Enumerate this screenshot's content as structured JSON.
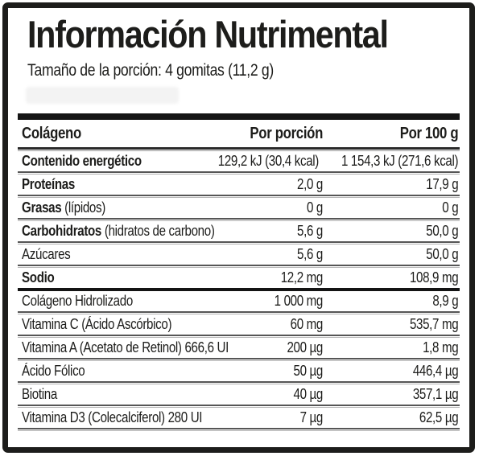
{
  "label": {
    "title": "Información Nutrimental",
    "serving_size": "Tamaño de la porción: 4 gomitas (11,2 g)"
  },
  "table": {
    "header": {
      "product": "Colágeno",
      "per_serving": "Por porción",
      "per_100g": "Por 100 g"
    },
    "rows": [
      {
        "name_strong": "Contenido energético",
        "name_plain": "",
        "per_serving": "129,2 kJ (30,4 kcal)",
        "per_100g": "1 154,3 kJ (271,6 kcal)",
        "rule": "normal"
      },
      {
        "name_strong": "Proteínas",
        "name_plain": "",
        "per_serving": "2,0 g",
        "per_100g": "17,9 g",
        "rule": "normal"
      },
      {
        "name_strong": "Grasas",
        "name_plain": " (lípidos)",
        "per_serving": "0 g",
        "per_100g": "0 g",
        "rule": "normal"
      },
      {
        "name_strong": "Carbohidratos",
        "name_plain": " (hidratos de carbono)",
        "per_serving": "5,6 g",
        "per_100g": "50,0 g",
        "rule": "normal"
      },
      {
        "name_strong": "",
        "name_plain": "Azúcares",
        "per_serving": "5,6 g",
        "per_100g": "50,0 g",
        "rule": "normal"
      },
      {
        "name_strong": "Sodio",
        "name_plain": "",
        "per_serving": "12,2 mg",
        "per_100g": "108,9 mg",
        "rule": "thick"
      },
      {
        "name_strong": "",
        "name_plain": "Colágeno Hidrolizado",
        "per_serving": "1 000 mg",
        "per_100g": "8,9 g",
        "rule": "normal"
      },
      {
        "name_strong": "",
        "name_plain": "Vitamina C (Ácido Ascórbico)",
        "per_serving": "60 mg",
        "per_100g": "535,7 mg",
        "rule": "normal"
      },
      {
        "name_strong": "",
        "name_plain": "Vitamina A (Acetato de Retinol) 666,6 UI",
        "per_serving": "200 µg",
        "per_100g": "1,8 mg",
        "rule": "normal"
      },
      {
        "name_strong": "",
        "name_plain": "Ácido Fólico",
        "per_serving": "50 µg",
        "per_100g": "446,4 µg",
        "rule": "normal"
      },
      {
        "name_strong": "",
        "name_plain": "Biotina",
        "per_serving": "40 µg",
        "per_100g": "357,1 µg",
        "rule": "normal"
      },
      {
        "name_strong": "",
        "name_plain": "Vitamina D3 (Colecalciferol) 280 UI",
        "per_serving": "7 µg",
        "per_100g": "62,5 µg",
        "rule": "normal"
      }
    ]
  },
  "colors": {
    "text": "#1d1d1b",
    "outer_border": "#1d1d1b",
    "header_bar": "#151515",
    "rule_dark": "#565656",
    "rule_light": "#b3b3b3",
    "thick_rule": "#141414"
  }
}
